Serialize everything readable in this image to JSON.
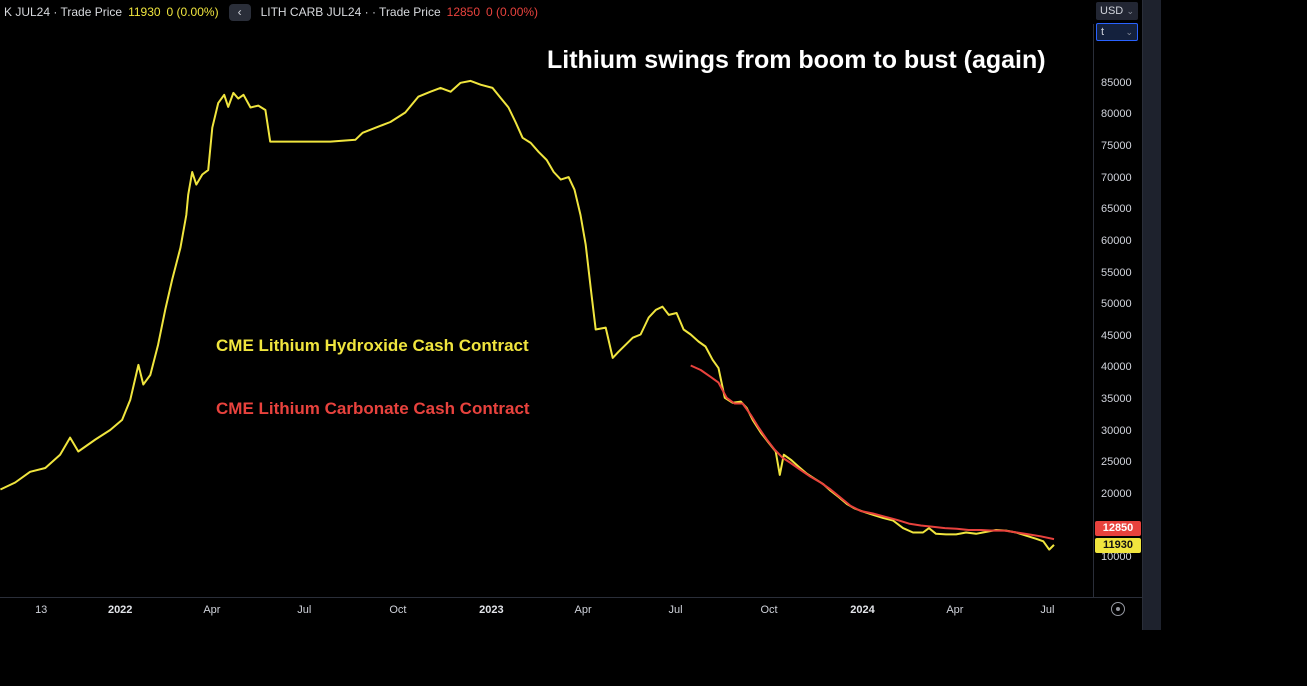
{
  "legend": {
    "series1": {
      "title": "K JUL24 · Trade Price",
      "value": "11930",
      "change": "0 (0.00%)"
    },
    "collapse_button": "‹",
    "series2": {
      "title": "LITH CARB JUL24 · · Trade Price",
      "value": "12850",
      "change": "0 (0.00%)"
    }
  },
  "axis_controls": {
    "currency": "USD",
    "unit": "t",
    "chevron": "⌄"
  },
  "annotations": {
    "title": "Lithium swings from boom to bust (again)",
    "hydroxide_label": "CME Lithium Hydroxide Cash Contract",
    "carbonate_label": "CME Lithium Carbonate Cash Contract"
  },
  "colors": {
    "hydroxide": "#f0e53e",
    "carbonate": "#e8423d",
    "axis_text": "#d1d4dc",
    "title_text": "#ffffff",
    "background": "#000000"
  },
  "chart_data": {
    "type": "line",
    "title": "Lithium swings from boom to bust (again)",
    "xlabel": "",
    "ylabel": "USD per t",
    "grid": false,
    "legend_position": "none",
    "x_domain": [
      2021.676,
      2024.621
    ],
    "y_domain": [
      3700,
      94300
    ],
    "y_ticks": [
      85000,
      80000,
      75000,
      70000,
      65000,
      60000,
      55000,
      50000,
      45000,
      40000,
      35000,
      30000,
      25000,
      20000,
      10000
    ],
    "x_ticks": [
      {
        "label": "13",
        "t": 2021.787
      },
      {
        "label": "2022",
        "t": 2022.0,
        "major": true
      },
      {
        "label": "Apr",
        "t": 2022.247
      },
      {
        "label": "Jul",
        "t": 2022.496
      },
      {
        "label": "Oct",
        "t": 2022.748
      },
      {
        "label": "2023",
        "t": 2023.0,
        "major": true
      },
      {
        "label": "Apr",
        "t": 2023.247
      },
      {
        "label": "Jul",
        "t": 2023.496
      },
      {
        "label": "Oct",
        "t": 2023.748
      },
      {
        "label": "2024",
        "t": 2024.0,
        "major": true
      },
      {
        "label": "Apr",
        "t": 2024.249
      },
      {
        "label": "Jul",
        "t": 2024.498
      }
    ],
    "last_values": [
      {
        "label": "12850",
        "value": 12850,
        "bg": "#e8423d",
        "text_color": "#ffffff",
        "dy": -11
      },
      {
        "label": "11930",
        "value": 11930,
        "bg": "#f0e53e",
        "text_color": "#111111",
        "dy": 1
      }
    ],
    "series": [
      {
        "name": "CME Lithium Hydroxide Cash Contract",
        "symbol": "K JUL24",
        "color": "#f0e53e",
        "points": [
          [
            2021.677,
            20700
          ],
          [
            2021.717,
            21800
          ],
          [
            2021.757,
            23500
          ],
          [
            2021.798,
            24100
          ],
          [
            2021.838,
            26200
          ],
          [
            2021.865,
            28900
          ],
          [
            2021.887,
            26700
          ],
          [
            2021.933,
            28600
          ],
          [
            2021.973,
            30100
          ],
          [
            2022.005,
            31700
          ],
          [
            2022.027,
            34900
          ],
          [
            2022.049,
            40400
          ],
          [
            2022.062,
            37300
          ],
          [
            2022.081,
            38800
          ],
          [
            2022.102,
            43600
          ],
          [
            2022.121,
            49100
          ],
          [
            2022.14,
            53900
          ],
          [
            2022.162,
            58900
          ],
          [
            2022.178,
            64100
          ],
          [
            2022.183,
            67300
          ],
          [
            2022.194,
            70900
          ],
          [
            2022.205,
            68900
          ],
          [
            2022.221,
            70500
          ],
          [
            2022.237,
            71200
          ],
          [
            2022.248,
            77900
          ],
          [
            2022.264,
            81800
          ],
          [
            2022.28,
            83100
          ],
          [
            2022.291,
            81200
          ],
          [
            2022.305,
            83400
          ],
          [
            2022.318,
            82500
          ],
          [
            2022.332,
            83100
          ],
          [
            2022.351,
            81100
          ],
          [
            2022.372,
            81400
          ],
          [
            2022.391,
            80700
          ],
          [
            2022.404,
            75700
          ],
          [
            2022.485,
            75700
          ],
          [
            2022.566,
            75700
          ],
          [
            2022.634,
            76000
          ],
          [
            2022.653,
            77100
          ],
          [
            2022.688,
            77900
          ],
          [
            2022.728,
            78800
          ],
          [
            2022.768,
            80300
          ],
          [
            2022.803,
            82800
          ],
          [
            2022.836,
            83600
          ],
          [
            2022.863,
            84200
          ],
          [
            2022.89,
            83600
          ],
          [
            2022.917,
            85000
          ],
          [
            2022.944,
            85300
          ],
          [
            2022.971,
            84700
          ],
          [
            2023.003,
            84200
          ],
          [
            2023.025,
            82600
          ],
          [
            2023.046,
            81100
          ],
          [
            2023.065,
            78800
          ],
          [
            2023.084,
            76300
          ],
          [
            2023.106,
            75500
          ],
          [
            2023.127,
            74100
          ],
          [
            2023.149,
            72800
          ],
          [
            2023.168,
            70900
          ],
          [
            2023.187,
            69700
          ],
          [
            2023.208,
            70100
          ],
          [
            2023.224,
            68100
          ],
          [
            2023.24,
            64100
          ],
          [
            2023.254,
            59400
          ],
          [
            2023.268,
            52300
          ],
          [
            2023.281,
            46000
          ],
          [
            2023.308,
            46300
          ],
          [
            2023.327,
            41500
          ],
          [
            2023.343,
            42500
          ],
          [
            2023.362,
            43600
          ],
          [
            2023.381,
            44700
          ],
          [
            2023.402,
            45200
          ],
          [
            2023.424,
            47900
          ],
          [
            2023.443,
            49100
          ],
          [
            2023.461,
            49600
          ],
          [
            2023.478,
            48300
          ],
          [
            2023.499,
            48600
          ],
          [
            2023.518,
            46000
          ],
          [
            2023.537,
            45200
          ],
          [
            2023.558,
            44100
          ],
          [
            2023.577,
            43300
          ],
          [
            2023.596,
            41200
          ],
          [
            2023.612,
            39900
          ],
          [
            2023.629,
            35200
          ],
          [
            2023.65,
            34400
          ],
          [
            2023.672,
            34600
          ],
          [
            2023.688,
            33600
          ],
          [
            2023.704,
            31700
          ],
          [
            2023.726,
            29700
          ],
          [
            2023.747,
            28100
          ],
          [
            2023.766,
            26700
          ],
          [
            2023.777,
            23000
          ],
          [
            2023.788,
            26200
          ],
          [
            2023.807,
            25400
          ],
          [
            2023.828,
            24300
          ],
          [
            2023.85,
            23200
          ],
          [
            2023.871,
            22400
          ],
          [
            2023.893,
            21600
          ],
          [
            2023.914,
            20500
          ],
          [
            2023.936,
            19500
          ],
          [
            2023.958,
            18400
          ],
          [
            2023.979,
            17700
          ],
          [
            2024.001,
            17200
          ],
          [
            2024.028,
            16700
          ],
          [
            2024.055,
            16200
          ],
          [
            2024.082,
            15800
          ],
          [
            2024.109,
            14600
          ],
          [
            2024.136,
            13900
          ],
          [
            2024.163,
            13900
          ],
          [
            2024.179,
            14600
          ],
          [
            2024.198,
            13700
          ],
          [
            2024.225,
            13600
          ],
          [
            2024.252,
            13600
          ],
          [
            2024.279,
            13900
          ],
          [
            2024.306,
            13700
          ],
          [
            2024.333,
            14000
          ],
          [
            2024.36,
            14300
          ],
          [
            2024.387,
            14200
          ],
          [
            2024.414,
            13900
          ],
          [
            2024.441,
            13400
          ],
          [
            2024.468,
            12900
          ],
          [
            2024.487,
            12500
          ],
          [
            2024.503,
            11200
          ],
          [
            2024.516,
            11930
          ]
        ]
      },
      {
        "name": "CME Lithium Carbonate Cash Contract",
        "symbol": "LITH CARB JUL24",
        "color": "#e8423d",
        "points": [
          [
            2023.537,
            40300
          ],
          [
            2023.564,
            39600
          ],
          [
            2023.591,
            38500
          ],
          [
            2023.612,
            37600
          ],
          [
            2023.634,
            35200
          ],
          [
            2023.655,
            34300
          ],
          [
            2023.677,
            34300
          ],
          [
            2023.699,
            32500
          ],
          [
            2023.72,
            30500
          ],
          [
            2023.742,
            28600
          ],
          [
            2023.763,
            27000
          ],
          [
            2023.785,
            25700
          ],
          [
            2023.806,
            24900
          ],
          [
            2023.833,
            23800
          ],
          [
            2023.86,
            22700
          ],
          [
            2023.887,
            21800
          ],
          [
            2023.914,
            20700
          ],
          [
            2023.941,
            19400
          ],
          [
            2023.968,
            18100
          ],
          [
            2023.995,
            17300
          ],
          [
            2024.028,
            16900
          ],
          [
            2024.06,
            16400
          ],
          [
            2024.092,
            15900
          ],
          [
            2024.125,
            15300
          ],
          [
            2024.157,
            15000
          ],
          [
            2024.189,
            14800
          ],
          [
            2024.222,
            14600
          ],
          [
            2024.254,
            14500
          ],
          [
            2024.286,
            14300
          ],
          [
            2024.319,
            14300
          ],
          [
            2024.351,
            14200
          ],
          [
            2024.383,
            14200
          ],
          [
            2024.416,
            13900
          ],
          [
            2024.448,
            13600
          ],
          [
            2024.48,
            13300
          ],
          [
            2024.516,
            12850
          ]
        ]
      }
    ]
  }
}
